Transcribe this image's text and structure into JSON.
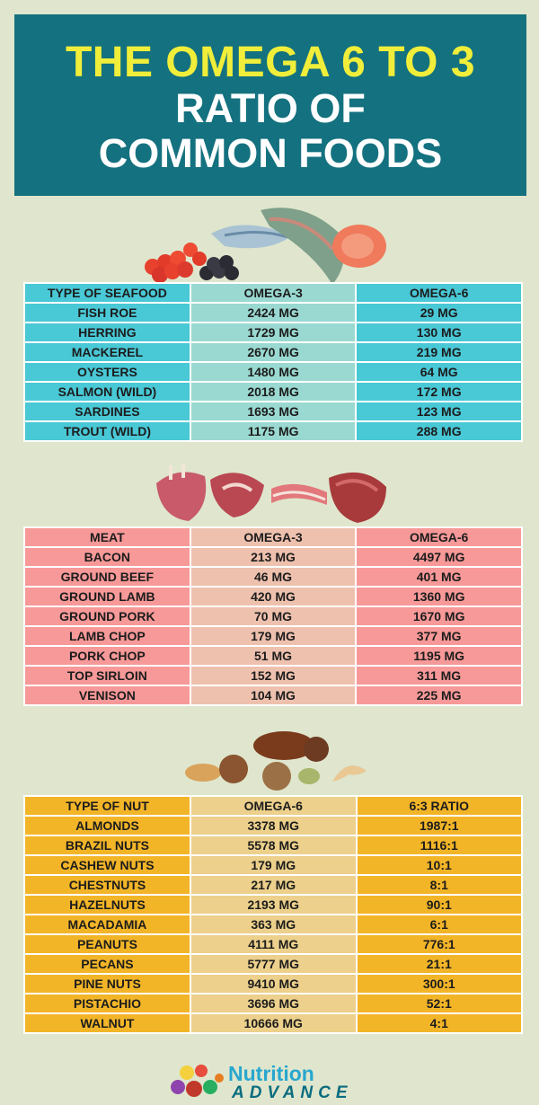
{
  "title": {
    "line1": "THE OMEGA 6 TO 3",
    "line2": "RATIO OF",
    "line3": "COMMON FOODS"
  },
  "seafood": {
    "headers": [
      "TYPE OF SEAFOOD",
      "OMEGA-3",
      "OMEGA-6"
    ],
    "rows": [
      [
        "FISH ROE",
        "2424 MG",
        "29 MG"
      ],
      [
        "HERRING",
        "1729 MG",
        "130 MG"
      ],
      [
        "MACKEREL",
        "2670 MG",
        "219 MG"
      ],
      [
        "OYSTERS",
        "1480 MG",
        "64 MG"
      ],
      [
        "SALMON (WILD)",
        "2018 MG",
        "172 MG"
      ],
      [
        "SARDINES",
        "1693 MG",
        "123 MG"
      ],
      [
        "TROUT (WILD)",
        "1175 MG",
        "288 MG"
      ]
    ]
  },
  "meat": {
    "headers": [
      "MEAT",
      "OMEGA-3",
      "OMEGA-6"
    ],
    "rows": [
      [
        "BACON",
        "213 MG",
        "4497 MG"
      ],
      [
        "GROUND BEEF",
        "46 MG",
        "401 MG"
      ],
      [
        "GROUND LAMB",
        "420 MG",
        "1360 MG"
      ],
      [
        "GROUND PORK",
        "70 MG",
        "1670 MG"
      ],
      [
        "LAMB CHOP",
        "179 MG",
        "377 MG"
      ],
      [
        "PORK CHOP",
        "51 MG",
        "1195 MG"
      ],
      [
        "TOP SIRLOIN",
        "152 MG",
        "311 MG"
      ],
      [
        "VENISON",
        "104 MG",
        "225 MG"
      ]
    ]
  },
  "nuts": {
    "headers": [
      "TYPE OF NUT",
      "OMEGA-6",
      "6:3 RATIO"
    ],
    "rows": [
      [
        "ALMONDS",
        "3378 MG",
        "1987:1"
      ],
      [
        "BRAZIL NUTS",
        "5578 MG",
        "1116:1"
      ],
      [
        "CASHEW NUTS",
        "179 MG",
        "10:1"
      ],
      [
        "CHESTNUTS",
        "217 MG",
        "8:1"
      ],
      [
        "HAZELNUTS",
        "2193 MG",
        "90:1"
      ],
      [
        "MACADAMIA",
        "363 MG",
        "6:1"
      ],
      [
        "PEANUTS",
        "4111 MG",
        "776:1"
      ],
      [
        "PECANS",
        "5777 MG",
        "21:1"
      ],
      [
        "PINE NUTS",
        "9410 MG",
        "300:1"
      ],
      [
        "PISTACHIO",
        "3696 MG",
        "52:1"
      ],
      [
        "WALNUT",
        "10666 MG",
        "4:1"
      ]
    ]
  },
  "logo": {
    "name": "Nutrition",
    "sub": "ADVANCE"
  },
  "colors": {
    "background": "#dfe6cd",
    "title_box": "#14717f",
    "title_yellow": "#f0ee3a",
    "seafood": "#49c8d6",
    "meat": "#f79998",
    "nuts": "#f3b528"
  }
}
